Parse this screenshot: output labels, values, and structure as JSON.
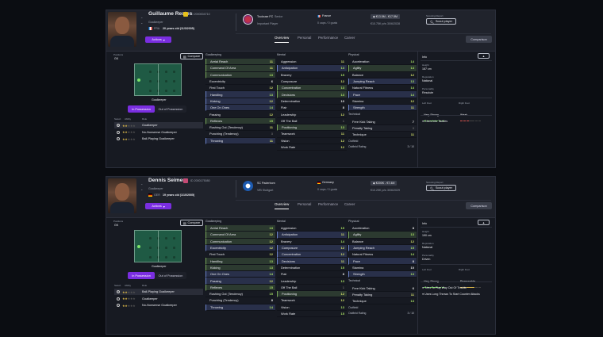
{
  "colors": {
    "accent": "#7a2ee0",
    "green_value": "#a8e063",
    "key_attr": "#79a85a",
    "pref_attr": "#6b82c8"
  },
  "labels": {
    "actions": "Actions",
    "compare": "Compare",
    "comparison": "Comparison",
    "scout": "Scout player",
    "scouting_report": "Scouting Report",
    "positions": "Positions",
    "in_possession": "In Possession",
    "out_of_possession": "Out of Possession",
    "select": "Select",
    "ability": "Ability",
    "role": "Role",
    "goalkeeping": "Goalkeeping",
    "mental": "Mental",
    "physical": "Physical",
    "technical": "Technical",
    "outfield": "Outfield",
    "outfield_rating": "Outfield Rating",
    "info": "Info",
    "height": "Height",
    "reputation": "Reputation",
    "personality": "Personality",
    "left_foot": "Left Foot",
    "right_foot": "Right Foot",
    "tabs": [
      "Overview",
      "Personal",
      "Performance",
      "Career"
    ]
  },
  "players": [
    {
      "name": "Guillaume Restes",
      "id": "ID 2000004710",
      "position": "Goalkeeper",
      "nat_code": "FRA",
      "age": "20 years old (11/3/2005)",
      "club": "Toulouse FC",
      "club_status": "Senior",
      "squad_status": "Important Player",
      "nation": "France",
      "caps": "0 caps / 0 goals",
      "value": "€13.5M - €17.5M",
      "wage": "€10.75K p/w  30/6/2028",
      "pitch_label": "Goalkeeper",
      "pos_code": "GK",
      "roles": [
        {
          "name": "Goalkeeper",
          "stars": 2
        },
        {
          "name": "No-Nonsense Goalkeeper",
          "stars": 2
        },
        {
          "name": "Ball-Playing Goalkeeper",
          "stars": 2
        }
      ],
      "goalkeeping": [
        [
          "Aerial Reach",
          11,
          "green"
        ],
        [
          "Command Of Area",
          11,
          "green"
        ],
        [
          "Communication",
          13,
          "green"
        ],
        [
          "Eccentricity",
          6,
          ""
        ],
        [
          "First Touch",
          12,
          ""
        ],
        [
          "Handling",
          13,
          "blue"
        ],
        [
          "Kicking",
          12,
          "blue"
        ],
        [
          "One On Ones",
          14,
          "blue"
        ],
        [
          "Passing",
          12,
          ""
        ],
        [
          "Reflexes",
          15,
          "green"
        ],
        [
          "Rushing Out (Tendency)",
          11,
          ""
        ],
        [
          "Punching (Tendency)",
          3,
          ""
        ],
        [
          "Throwing",
          11,
          "blue"
        ]
      ],
      "mental": [
        [
          "Aggression",
          11,
          ""
        ],
        [
          "Anticipation",
          13,
          "blue"
        ],
        [
          "Bravery",
          15,
          ""
        ],
        [
          "Composure",
          12,
          ""
        ],
        [
          "Concentration",
          13,
          "green"
        ],
        [
          "Decisions",
          13,
          "green"
        ],
        [
          "Determination",
          10,
          ""
        ],
        [
          "Flair",
          8,
          ""
        ],
        [
          "Leadership",
          12,
          ""
        ],
        [
          "Off The Ball",
          1,
          ""
        ],
        [
          "Positioning",
          13,
          "green"
        ],
        [
          "Teamwork",
          11,
          ""
        ],
        [
          "Vision",
          12,
          ""
        ],
        [
          "Work Rate",
          12,
          ""
        ]
      ],
      "physical": [
        [
          "Acceleration",
          14,
          ""
        ],
        [
          "Agility",
          14,
          "green"
        ],
        [
          "Balance",
          12,
          ""
        ],
        [
          "Jumping Reach",
          13,
          "blue"
        ],
        [
          "Natural Fitness",
          14,
          ""
        ],
        [
          "Pace",
          14,
          "blue"
        ],
        [
          "Stamina",
          12,
          ""
        ],
        [
          "Strength",
          11,
          "blue"
        ]
      ],
      "technical": [
        [
          "Free Kick Taking",
          7,
          ""
        ],
        [
          "Penalty Taking",
          3,
          "plain"
        ],
        [
          "Technique",
          11,
          ""
        ]
      ],
      "outfield_rating": "3 / 10",
      "height": "187 cm",
      "reputation": "National",
      "personality": "Resolute",
      "left_foot": "Very Strong",
      "left_level": 5,
      "right_foot": "Weak",
      "right_level": 2,
      "traits": [
        "Dives Into Tackles"
      ]
    },
    {
      "name": "Dennis Seimen",
      "id": "ID 2000175080",
      "position": "Goalkeeper",
      "nat_code": "GER",
      "age": "19 years old (1/10/2005)",
      "club": "SC Paderborn",
      "club_status": "",
      "squad_status": "VfB Stuttgart",
      "nation": "Germany",
      "caps": "0 caps / 0 goals",
      "value": "€200K - €7.4M",
      "wage": "€10.25K p/w  30/6/2029",
      "pitch_label": "Goalkeeper",
      "pos_code": "GK",
      "roles": [
        {
          "name": "Ball-Playing Goalkeeper",
          "stars": 2
        },
        {
          "name": "Goalkeeper",
          "stars": 2
        },
        {
          "name": "No-Nonsense Goalkeeper",
          "stars": 2
        }
      ],
      "goalkeeping": [
        [
          "Aerial Reach",
          13,
          "green"
        ],
        [
          "Command Of Area",
          12,
          "green"
        ],
        [
          "Communication",
          12,
          "green"
        ],
        [
          "Eccentricity",
          12,
          "blue"
        ],
        [
          "First Touch",
          12,
          ""
        ],
        [
          "Handling",
          13,
          "green"
        ],
        [
          "Kicking",
          13,
          "green"
        ],
        [
          "One On Ones",
          14,
          "blue"
        ],
        [
          "Passing",
          12,
          "blue"
        ],
        [
          "Reflexes",
          15,
          "green"
        ],
        [
          "Rushing Out (Tendency)",
          15,
          ""
        ],
        [
          "Punching (Tendency)",
          8,
          ""
        ],
        [
          "Throwing",
          14,
          "blue"
        ]
      ],
      "mental": [
        [
          "Aggression",
          15,
          ""
        ],
        [
          "Anticipation",
          11,
          "blue"
        ],
        [
          "Bravery",
          14,
          ""
        ],
        [
          "Composure",
          12,
          "blue"
        ],
        [
          "Concentration",
          12,
          "blue"
        ],
        [
          "Decisions",
          11,
          "blue"
        ],
        [
          "Determination",
          15,
          ""
        ],
        [
          "Flair",
          8,
          ""
        ],
        [
          "Leadership",
          13,
          ""
        ],
        [
          "Off The Ball",
          1,
          ""
        ],
        [
          "Positioning",
          12,
          "green"
        ],
        [
          "Teamwork",
          12,
          ""
        ],
        [
          "Vision",
          13,
          ""
        ],
        [
          "Work Rate",
          15,
          ""
        ]
      ],
      "physical": [
        [
          "Acceleration",
          8,
          ""
        ],
        [
          "Agility",
          13,
          "green"
        ],
        [
          "Balance",
          12,
          ""
        ],
        [
          "Jumping Reach",
          15,
          "blue"
        ],
        [
          "Natural Fitness",
          14,
          ""
        ],
        [
          "Pace",
          8,
          "blue"
        ],
        [
          "Stamina",
          10,
          ""
        ],
        [
          "Strength",
          13,
          "blue"
        ]
      ],
      "technical": [
        [
          "Free Kick Taking",
          6,
          ""
        ],
        [
          "Penalty Taking",
          11,
          "plain"
        ],
        [
          "Technique",
          13,
          ""
        ]
      ],
      "outfield_rating": "3 / 10",
      "height": "190 cm",
      "reputation": "National",
      "personality": "Driven",
      "left_foot": "Very Strong",
      "left_level": 5,
      "right_foot": "Reasonable",
      "right_level": 3,
      "traits": [
        "Tries To Play Way Out Of Trouble",
        "Uses Long Throws To Start Counter Attacks"
      ]
    }
  ]
}
